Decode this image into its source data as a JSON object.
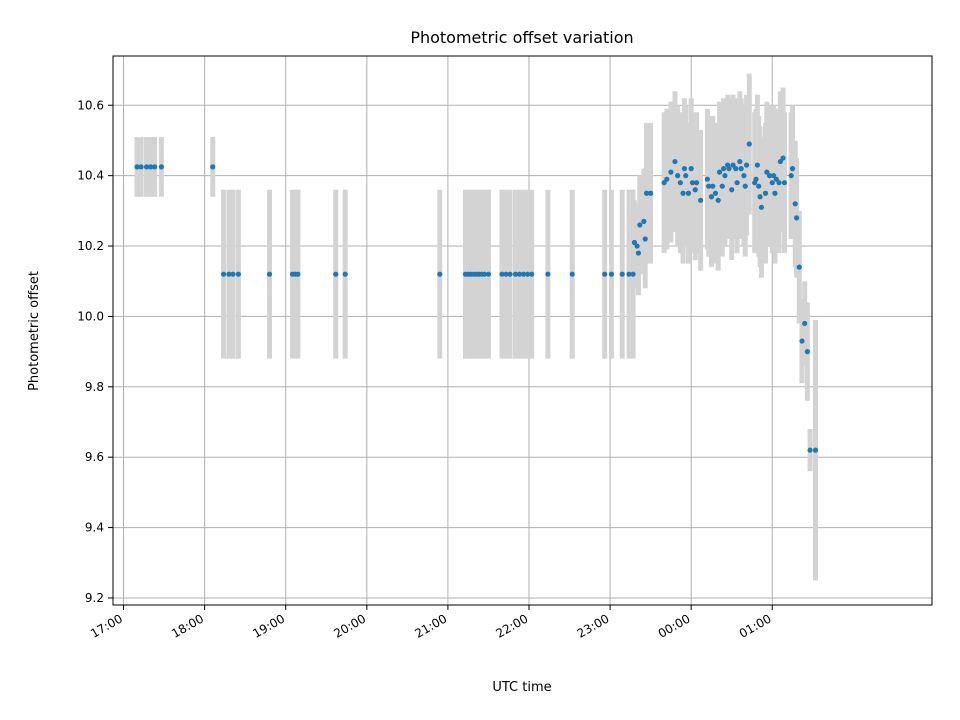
{
  "chart_data": {
    "type": "scatter",
    "title": "Photometric offset variation",
    "xlabel": "UTC time",
    "ylabel": "Photometric offset",
    "ylim": [
      9.18,
      10.74
    ],
    "xlim_hours": [
      16.87,
      26.97
    ],
    "grid": true,
    "legend": "none",
    "colors": {
      "points": "#1f77b4",
      "errorbars": "#d3d3d3",
      "grid": "#b0b0b0"
    },
    "x_tick_labels": [
      "17:00",
      "18:00",
      "19:00",
      "20:00",
      "21:00",
      "22:00",
      "23:00",
      "00:00",
      "01:00"
    ],
    "x_tick_hours": [
      17,
      18,
      19,
      20,
      21,
      22,
      23,
      24,
      25
    ],
    "y_tick_labels": [
      "9.2",
      "9.4",
      "9.6",
      "9.8",
      "10.0",
      "10.2",
      "10.4",
      "10.6"
    ],
    "y_tick_values": [
      9.2,
      9.4,
      9.6,
      9.8,
      10.0,
      10.2,
      10.4,
      10.6
    ],
    "series": [
      {
        "points": [
          {
            "t": "17:10",
            "y": 10.425,
            "err": 0.085
          },
          {
            "t": "17:13",
            "y": 10.425,
            "err": 0.085
          },
          {
            "t": "17:17",
            "y": 10.425,
            "err": 0.085
          },
          {
            "t": "17:20",
            "y": 10.425,
            "err": 0.085
          },
          {
            "t": "17:23",
            "y": 10.425,
            "err": 0.085
          },
          {
            "t": "17:28",
            "y": 10.425,
            "err": 0.085
          },
          {
            "t": "18:06",
            "y": 10.425,
            "err": 0.085
          },
          {
            "t": "18:14",
            "y": 10.12,
            "err": 0.24
          },
          {
            "t": "18:18",
            "y": 10.12,
            "err": 0.24
          },
          {
            "t": "18:21",
            "y": 10.12,
            "err": 0.24
          },
          {
            "t": "18:25",
            "y": 10.12,
            "err": 0.24
          },
          {
            "t": "18:48",
            "y": 10.12,
            "err": 0.24
          },
          {
            "t": "19:05",
            "y": 10.12,
            "err": 0.24
          },
          {
            "t": "19:07",
            "y": 10.12,
            "err": 0.24
          },
          {
            "t": "19:09",
            "y": 10.12,
            "err": 0.24
          },
          {
            "t": "19:37",
            "y": 10.12,
            "err": 0.24
          },
          {
            "t": "19:44",
            "y": 10.12,
            "err": 0.24
          },
          {
            "t": "20:54",
            "y": 10.12,
            "err": 0.24
          },
          {
            "t": "21:13",
            "y": 10.12,
            "err": 0.24
          },
          {
            "t": "21:15",
            "y": 10.12,
            "err": 0.24
          },
          {
            "t": "21:17",
            "y": 10.12,
            "err": 0.24
          },
          {
            "t": "21:19",
            "y": 10.12,
            "err": 0.24
          },
          {
            "t": "21:21",
            "y": 10.12,
            "err": 0.24
          },
          {
            "t": "21:23",
            "y": 10.12,
            "err": 0.24
          },
          {
            "t": "21:25",
            "y": 10.12,
            "err": 0.24
          },
          {
            "t": "21:27",
            "y": 10.12,
            "err": 0.24
          },
          {
            "t": "21:30",
            "y": 10.12,
            "err": 0.24
          },
          {
            "t": "21:40",
            "y": 10.12,
            "err": 0.24
          },
          {
            "t": "21:43",
            "y": 10.12,
            "err": 0.24
          },
          {
            "t": "21:46",
            "y": 10.12,
            "err": 0.24
          },
          {
            "t": "21:50",
            "y": 10.12,
            "err": 0.24
          },
          {
            "t": "21:53",
            "y": 10.12,
            "err": 0.24
          },
          {
            "t": "21:56",
            "y": 10.12,
            "err": 0.24
          },
          {
            "t": "21:59",
            "y": 10.12,
            "err": 0.24
          },
          {
            "t": "22:02",
            "y": 10.12,
            "err": 0.24
          },
          {
            "t": "22:14",
            "y": 10.12,
            "err": 0.24
          },
          {
            "t": "22:32",
            "y": 10.12,
            "err": 0.24
          },
          {
            "t": "22:56",
            "y": 10.12,
            "err": 0.24
          },
          {
            "t": "23:01",
            "y": 10.12,
            "err": 0.24
          },
          {
            "t": "23:09",
            "y": 10.12,
            "err": 0.24
          },
          {
            "t": "23:14",
            "y": 10.12,
            "err": 0.24
          },
          {
            "t": "23:17",
            "y": 10.12,
            "err": 0.24
          },
          {
            "t": "23:18",
            "y": 10.21,
            "err": 0.12
          },
          {
            "t": "23:20",
            "y": 10.2,
            "err": 0.12
          },
          {
            "t": "23:21",
            "y": 10.18,
            "err": 0.12
          },
          {
            "t": "23:22",
            "y": 10.26,
            "err": 0.14
          },
          {
            "t": "23:25",
            "y": 10.27,
            "err": 0.15
          },
          {
            "t": "23:26",
            "y": 10.22,
            "err": 0.14
          },
          {
            "t": "23:27",
            "y": 10.35,
            "err": 0.2
          },
          {
            "t": "23:30",
            "y": 10.35,
            "err": 0.2
          },
          {
            "t": "23:40",
            "y": 10.38,
            "err": 0.2
          },
          {
            "t": "23:42",
            "y": 10.39,
            "err": 0.2
          },
          {
            "t": "23:45",
            "y": 10.41,
            "err": 0.2
          },
          {
            "t": "23:48",
            "y": 10.44,
            "err": 0.2
          },
          {
            "t": "23:50",
            "y": 10.4,
            "err": 0.2
          },
          {
            "t": "23:52",
            "y": 10.38,
            "err": 0.2
          },
          {
            "t": "23:54",
            "y": 10.35,
            "err": 0.2
          },
          {
            "t": "23:55",
            "y": 10.42,
            "err": 0.2
          },
          {
            "t": "23:56",
            "y": 10.4,
            "err": 0.2
          },
          {
            "t": "23:58",
            "y": 10.35,
            "err": 0.2
          },
          {
            "t": "00:00",
            "y": 10.42,
            "err": 0.2
          },
          {
            "t": "00:01",
            "y": 10.38,
            "err": 0.2
          },
          {
            "t": "00:03",
            "y": 10.36,
            "err": 0.2
          },
          {
            "t": "00:04",
            "y": 10.38,
            "err": 0.2
          },
          {
            "t": "00:07",
            "y": 10.33,
            "err": 0.2
          },
          {
            "t": "00:12",
            "y": 10.39,
            "err": 0.2
          },
          {
            "t": "00:13",
            "y": 10.37,
            "err": 0.2
          },
          {
            "t": "00:15",
            "y": 10.34,
            "err": 0.2
          },
          {
            "t": "00:16",
            "y": 10.37,
            "err": 0.2
          },
          {
            "t": "00:18",
            "y": 10.35,
            "err": 0.2
          },
          {
            "t": "00:20",
            "y": 10.33,
            "err": 0.2
          },
          {
            "t": "00:21",
            "y": 10.41,
            "err": 0.2
          },
          {
            "t": "00:23",
            "y": 10.37,
            "err": 0.2
          },
          {
            "t": "00:24",
            "y": 10.42,
            "err": 0.2
          },
          {
            "t": "00:25",
            "y": 10.4,
            "err": 0.2
          },
          {
            "t": "00:27",
            "y": 10.43,
            "err": 0.2
          },
          {
            "t": "00:28",
            "y": 10.42,
            "err": 0.2
          },
          {
            "t": "00:30",
            "y": 10.36,
            "err": 0.2
          },
          {
            "t": "00:31",
            "y": 10.43,
            "err": 0.2
          },
          {
            "t": "00:33",
            "y": 10.42,
            "err": 0.2
          },
          {
            "t": "00:34",
            "y": 10.38,
            "err": 0.2
          },
          {
            "t": "00:36",
            "y": 10.44,
            "err": 0.2
          },
          {
            "t": "00:37",
            "y": 10.42,
            "err": 0.2
          },
          {
            "t": "00:39",
            "y": 10.4,
            "err": 0.2
          },
          {
            "t": "00:40",
            "y": 10.37,
            "err": 0.2
          },
          {
            "t": "00:41",
            "y": 10.43,
            "err": 0.2
          },
          {
            "t": "00:43",
            "y": 10.49,
            "err": 0.2
          },
          {
            "t": "00:47",
            "y": 10.38,
            "err": 0.2
          },
          {
            "t": "00:48",
            "y": 10.39,
            "err": 0.2
          },
          {
            "t": "00:49",
            "y": 10.43,
            "err": 0.2
          },
          {
            "t": "00:50",
            "y": 10.37,
            "err": 0.2
          },
          {
            "t": "00:51",
            "y": 10.34,
            "err": 0.2
          },
          {
            "t": "00:52",
            "y": 10.31,
            "err": 0.2
          },
          {
            "t": "00:55",
            "y": 10.35,
            "err": 0.2
          },
          {
            "t": "00:56",
            "y": 10.41,
            "err": 0.2
          },
          {
            "t": "00:58",
            "y": 10.4,
            "err": 0.2
          },
          {
            "t": "01:00",
            "y": 10.38,
            "err": 0.2
          },
          {
            "t": "01:01",
            "y": 10.4,
            "err": 0.2
          },
          {
            "t": "01:02",
            "y": 10.35,
            "err": 0.2
          },
          {
            "t": "01:03",
            "y": 10.39,
            "err": 0.2
          },
          {
            "t": "01:05",
            "y": 10.38,
            "err": 0.2
          },
          {
            "t": "01:06",
            "y": 10.44,
            "err": 0.2
          },
          {
            "t": "01:08",
            "y": 10.45,
            "err": 0.2
          },
          {
            "t": "01:09",
            "y": 10.38,
            "err": 0.2
          },
          {
            "t": "01:14",
            "y": 10.4,
            "err": 0.18
          },
          {
            "t": "01:15",
            "y": 10.42,
            "err": 0.18
          },
          {
            "t": "01:17",
            "y": 10.32,
            "err": 0.18
          },
          {
            "t": "01:18",
            "y": 10.28,
            "err": 0.17
          },
          {
            "t": "01:20",
            "y": 10.14,
            "err": 0.16
          },
          {
            "t": "01:22",
            "y": 9.93,
            "err": 0.12
          },
          {
            "t": "01:24",
            "y": 9.98,
            "err": 0.12
          },
          {
            "t": "01:26",
            "y": 9.9,
            "err": 0.14
          },
          {
            "t": "01:28",
            "y": 9.62,
            "err": 0.06
          },
          {
            "t": "01:32",
            "y": 9.62,
            "err": 0.37
          }
        ]
      }
    ]
  }
}
